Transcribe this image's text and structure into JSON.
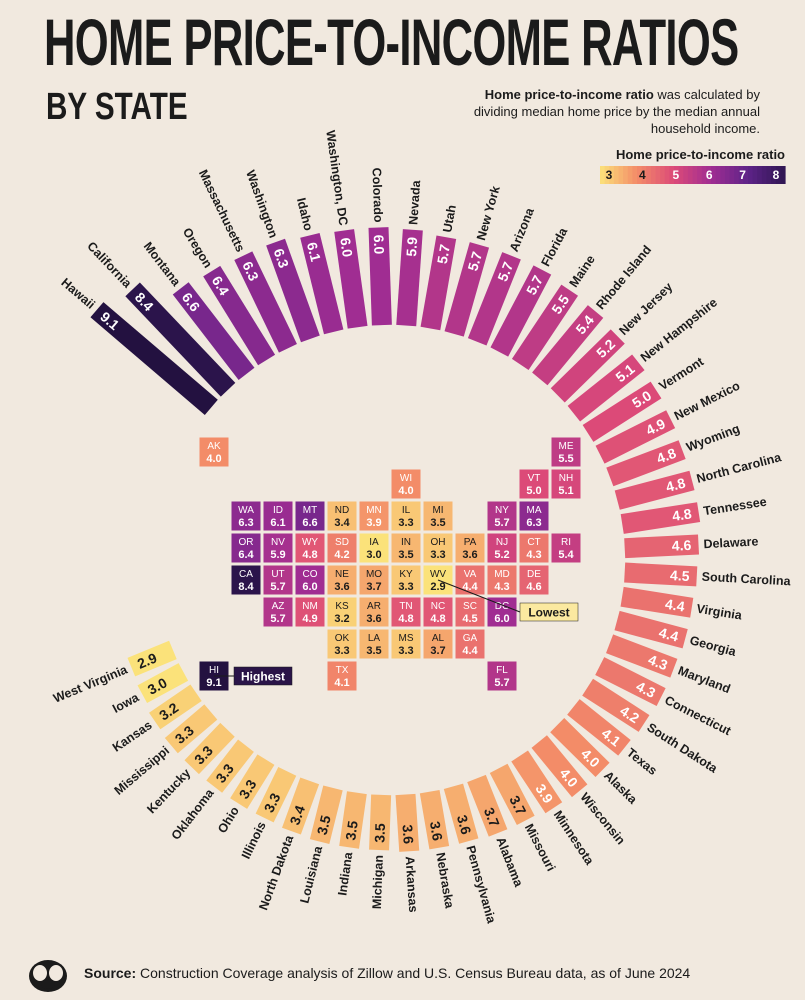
{
  "header": {
    "title": "HOME PRICE-TO-INCOME RATIOS",
    "subtitle": "BY STATE",
    "note_bold": "Home price-to-income ratio",
    "note_rest": " was calculated by dividing median home price by the median annual household income."
  },
  "footer": {
    "source_label": "Source:",
    "source_text": " Construction Coverage analysis of Zillow and U.S. Census Bureau data, as of June 2024"
  },
  "colors": {
    "background": "#f1e9df",
    "scale": [
      [
        "3",
        "#fbe27a"
      ],
      [
        "4",
        "#f38c68"
      ],
      [
        "5",
        "#dc4a78"
      ],
      [
        "6",
        "#a02d92"
      ],
      [
        "7",
        "#5e2388"
      ],
      [
        "8",
        "#2f1652"
      ]
    ]
  },
  "chart_data": {
    "type": "bar",
    "layout": "radial",
    "title": "Home Price-to-Income Ratios by State",
    "legend": {
      "title": "Home price-to-income ratio",
      "ticks": [
        3,
        4,
        5,
        6,
        7,
        8
      ]
    },
    "callouts": {
      "highest": "Highest",
      "lowest": "Lowest"
    },
    "states": [
      {
        "name": "Hawaii",
        "abbr": "HI",
        "value": 9.1
      },
      {
        "name": "California",
        "abbr": "CA",
        "value": 8.4
      },
      {
        "name": "Montana",
        "abbr": "MT",
        "value": 6.6
      },
      {
        "name": "Oregon",
        "abbr": "OR",
        "value": 6.4
      },
      {
        "name": "Massachusetts",
        "abbr": "MA",
        "value": 6.3
      },
      {
        "name": "Washington",
        "abbr": "WA",
        "value": 6.3
      },
      {
        "name": "Idaho",
        "abbr": "ID",
        "value": 6.1
      },
      {
        "name": "Washington, DC",
        "abbr": "DC",
        "value": 6.0
      },
      {
        "name": "Colorado",
        "abbr": "CO",
        "value": 6.0
      },
      {
        "name": "Nevada",
        "abbr": "NV",
        "value": 5.9
      },
      {
        "name": "Utah",
        "abbr": "UT",
        "value": 5.7
      },
      {
        "name": "New York",
        "abbr": "NY",
        "value": 5.7
      },
      {
        "name": "Arizona",
        "abbr": "AZ",
        "value": 5.7
      },
      {
        "name": "Florida",
        "abbr": "FL",
        "value": 5.7
      },
      {
        "name": "Maine",
        "abbr": "ME",
        "value": 5.5
      },
      {
        "name": "Rhode Island",
        "abbr": "RI",
        "value": 5.4
      },
      {
        "name": "New Jersey",
        "abbr": "NJ",
        "value": 5.2
      },
      {
        "name": "New Hampshire",
        "abbr": "NH",
        "value": 5.1
      },
      {
        "name": "Vermont",
        "abbr": "VT",
        "value": 5.0
      },
      {
        "name": "New Mexico",
        "abbr": "NM",
        "value": 4.9
      },
      {
        "name": "Wyoming",
        "abbr": "WY",
        "value": 4.8
      },
      {
        "name": "North Carolina",
        "abbr": "NC",
        "value": 4.8
      },
      {
        "name": "Tennessee",
        "abbr": "TN",
        "value": 4.8
      },
      {
        "name": "Delaware",
        "abbr": "DE",
        "value": 4.6
      },
      {
        "name": "South Carolina",
        "abbr": "SC",
        "value": 4.5
      },
      {
        "name": "Virginia",
        "abbr": "VA",
        "value": 4.4
      },
      {
        "name": "Georgia",
        "abbr": "GA",
        "value": 4.4
      },
      {
        "name": "Maryland",
        "abbr": "MD",
        "value": 4.3
      },
      {
        "name": "Connecticut",
        "abbr": "CT",
        "value": 4.3
      },
      {
        "name": "South Dakota",
        "abbr": "SD",
        "value": 4.2
      },
      {
        "name": "Texas",
        "abbr": "TX",
        "value": 4.1
      },
      {
        "name": "Alaska",
        "abbr": "AK",
        "value": 4.0
      },
      {
        "name": "Wisconsin",
        "abbr": "WI",
        "value": 4.0
      },
      {
        "name": "Minnesota",
        "abbr": "MN",
        "value": 3.9
      },
      {
        "name": "Missouri",
        "abbr": "MO",
        "value": 3.7
      },
      {
        "name": "Alabama",
        "abbr": "AL",
        "value": 3.7
      },
      {
        "name": "Pennsylvania",
        "abbr": "PA",
        "value": 3.6
      },
      {
        "name": "Nebraska",
        "abbr": "NE",
        "value": 3.6
      },
      {
        "name": "Arkansas",
        "abbr": "AR",
        "value": 3.6
      },
      {
        "name": "Michigan",
        "abbr": "MI",
        "value": 3.5
      },
      {
        "name": "Indiana",
        "abbr": "IN",
        "value": 3.5
      },
      {
        "name": "Louisiana",
        "abbr": "LA",
        "value": 3.5
      },
      {
        "name": "North Dakota",
        "abbr": "ND",
        "value": 3.4
      },
      {
        "name": "Illinois",
        "abbr": "IL",
        "value": 3.3
      },
      {
        "name": "Ohio",
        "abbr": "OH",
        "value": 3.3
      },
      {
        "name": "Oklahoma",
        "abbr": "OK",
        "value": 3.3
      },
      {
        "name": "Kentucky",
        "abbr": "KY",
        "value": 3.3
      },
      {
        "name": "Mississippi",
        "abbr": "MS",
        "value": 3.3
      },
      {
        "name": "Kansas",
        "abbr": "KS",
        "value": 3.2
      },
      {
        "name": "Iowa",
        "abbr": "IA",
        "value": 3.0
      },
      {
        "name": "West Virginia",
        "abbr": "WV",
        "value": 2.9
      }
    ]
  }
}
